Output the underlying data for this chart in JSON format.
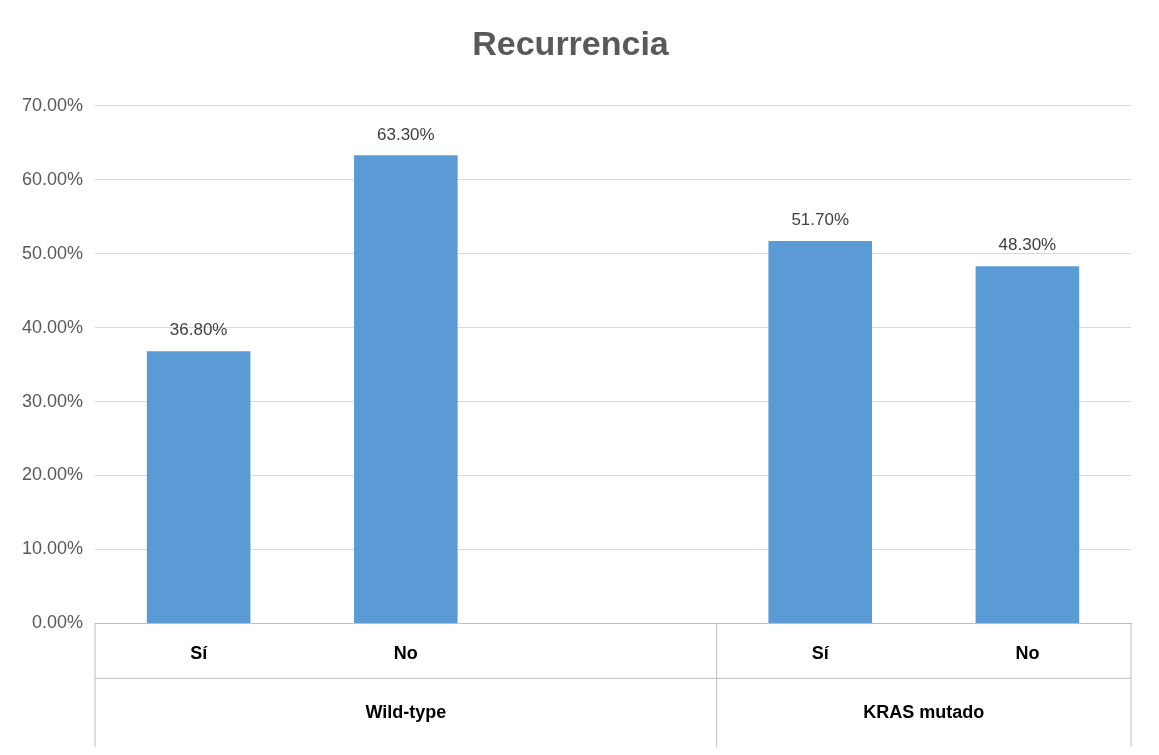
{
  "chart_data": {
    "type": "bar",
    "title": "Recurrencia",
    "categories": [
      "Sí",
      "No",
      null,
      "Sí",
      "No"
    ],
    "values": [
      36.8,
      63.3,
      null,
      51.7,
      48.3
    ],
    "value_labels": [
      "36.80%",
      "63.30%",
      null,
      "51.70%",
      "48.30%"
    ],
    "color": "#5b9bd5",
    "ylim": [
      0,
      70
    ],
    "yticks": [
      {
        "value": 0,
        "label": "0.00%"
      },
      {
        "value": 10,
        "label": "10.00%"
      },
      {
        "value": 20,
        "label": "20.00%"
      },
      {
        "value": 30,
        "label": "30.00%"
      },
      {
        "value": 40,
        "label": "40.00%"
      },
      {
        "value": 50,
        "label": "50.00%"
      },
      {
        "value": 60,
        "label": "60.00%"
      },
      {
        "value": 70,
        "label": "70.00%"
      }
    ],
    "annotations": [
      "Wild-type",
      "KRAS mutado"
    ],
    "grid": "y",
    "legend": false
  }
}
